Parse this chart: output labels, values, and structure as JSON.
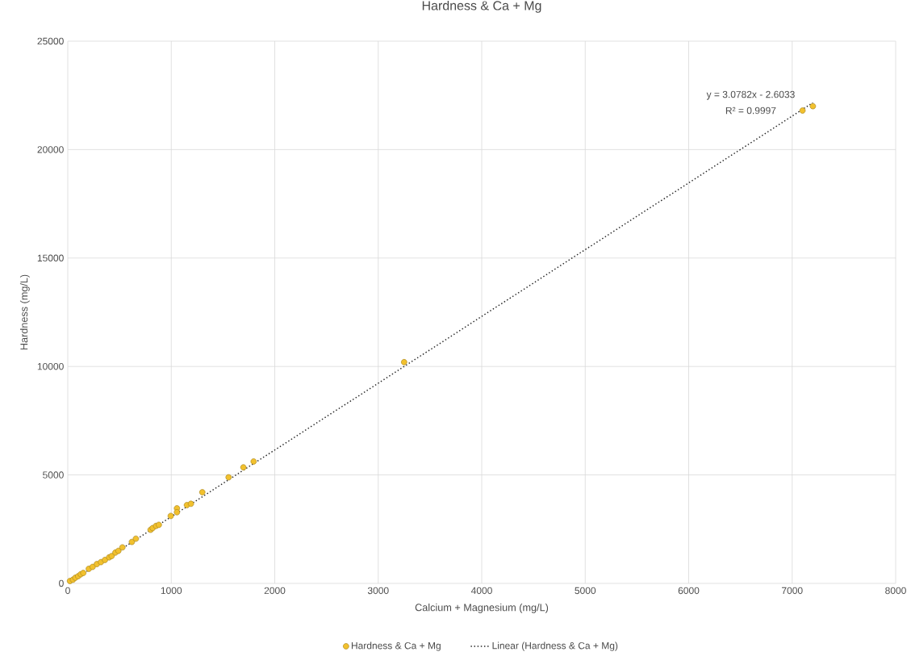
{
  "chart_data": {
    "type": "scatter",
    "title": "Hardness & Ca + Mg",
    "xlabel": "Calcium + Magnesium (mg/L)",
    "ylabel": "Hardness (mg/L)",
    "annotations": [
      "y = 3.0782x - 2.6033",
      "R² = 0.9997"
    ],
    "xlim": [
      0,
      8000
    ],
    "ylim": [
      0,
      25000
    ],
    "xticks": [
      0,
      1000,
      2000,
      3000,
      4000,
      5000,
      6000,
      7000,
      8000
    ],
    "yticks": [
      0,
      5000,
      10000,
      15000,
      20000,
      25000
    ],
    "grid": true,
    "legend": "bottom",
    "series": [
      {
        "name": "Hardness & Ca + Mg",
        "marker": "circle",
        "color": "#f2c12e",
        "x": [
          21,
          50,
          73,
          100,
          125,
          150,
          203,
          240,
          281,
          320,
          359,
          400,
          424,
          460,
          489,
          528,
          619,
          658,
          800,
          820,
          853,
          880,
          995,
          1055,
          1055,
          1151,
          1190,
          1300,
          1554,
          1697,
          1796,
          3250,
          7100,
          7200
        ],
        "values": [
          110,
          170,
          260,
          330,
          420,
          480,
          670,
          760,
          890,
          980,
          1080,
          1200,
          1260,
          1420,
          1500,
          1660,
          1910,
          2060,
          2470,
          2550,
          2650,
          2700,
          3110,
          3460,
          3280,
          3610,
          3670,
          4200,
          4890,
          5350,
          5620,
          10200,
          21800,
          22000
        ]
      },
      {
        "name": "Linear (Hardness & Ca + Mg)",
        "type": "line",
        "line_style": "dotted",
        "marker": "none",
        "color": "#262626",
        "x": [
          100,
          7200
        ],
        "values": [
          300,
          22160
        ]
      }
    ]
  }
}
